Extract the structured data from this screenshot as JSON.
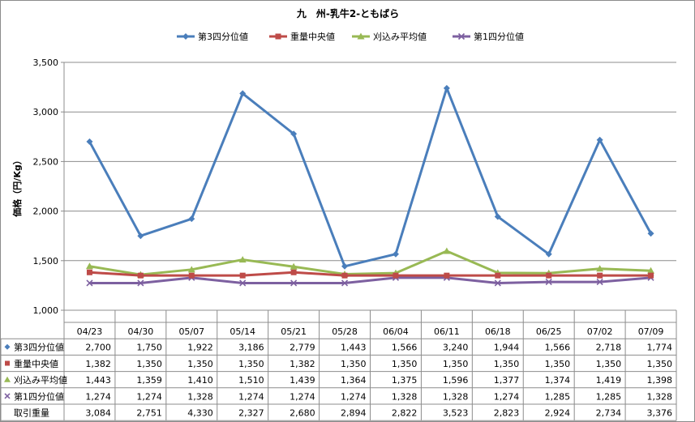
{
  "chart_data": {
    "type": "line",
    "title": "九　州-乳牛2-ともばら",
    "ylabel": "価格（円/Kg）",
    "ylim": [
      1000,
      3500
    ],
    "yticks": [
      "1,000",
      "1,500",
      "2,000",
      "2,500",
      "3,000",
      "3,500"
    ],
    "categories": [
      "04/23",
      "04/30",
      "05/07",
      "05/14",
      "05/21",
      "05/28",
      "06/04",
      "06/11",
      "06/18",
      "06/25",
      "07/02",
      "07/09"
    ],
    "grid": true,
    "legend_position": "top",
    "series": [
      {
        "name": "第3四分位値",
        "color": "#4A7EBB",
        "marker": "diamond",
        "values": [
          2700,
          1750,
          1922,
          3186,
          2779,
          1443,
          1566,
          3240,
          1944,
          1566,
          2718,
          1774
        ],
        "labels": [
          "2,700",
          "1,750",
          "1,922",
          "3,186",
          "2,779",
          "1,443",
          "1,566",
          "3,240",
          "1,944",
          "1,566",
          "2,718",
          "1,774"
        ]
      },
      {
        "name": "重量中央値",
        "color": "#BE4B48",
        "marker": "square",
        "values": [
          1382,
          1350,
          1350,
          1350,
          1382,
          1350,
          1350,
          1350,
          1350,
          1350,
          1350,
          1350
        ],
        "labels": [
          "1,382",
          "1,350",
          "1,350",
          "1,350",
          "1,382",
          "1,350",
          "1,350",
          "1,350",
          "1,350",
          "1,350",
          "1,350",
          "1,350"
        ]
      },
      {
        "name": "刈込み平均値",
        "color": "#98B954",
        "marker": "triangle",
        "values": [
          1443,
          1359,
          1410,
          1510,
          1439,
          1364,
          1375,
          1596,
          1377,
          1374,
          1419,
          1398
        ],
        "labels": [
          "1,443",
          "1,359",
          "1,410",
          "1,510",
          "1,439",
          "1,364",
          "1,375",
          "1,596",
          "1,377",
          "1,374",
          "1,419",
          "1,398"
        ]
      },
      {
        "name": "第1四分位値",
        "color": "#7D60A0",
        "marker": "x",
        "values": [
          1274,
          1274,
          1328,
          1274,
          1274,
          1274,
          1328,
          1328,
          1274,
          1285,
          1285,
          1328
        ],
        "labels": [
          "1,274",
          "1,274",
          "1,328",
          "1,274",
          "1,274",
          "1,274",
          "1,328",
          "1,328",
          "1,274",
          "1,285",
          "1,285",
          "1,328"
        ]
      }
    ],
    "table_extra_row": {
      "name": "取引重量",
      "labels": [
        "3,084",
        "2,751",
        "4,330",
        "2,327",
        "2,680",
        "2,894",
        "2,822",
        "3,523",
        "2,823",
        "2,924",
        "2,734",
        "3,376"
      ]
    }
  }
}
